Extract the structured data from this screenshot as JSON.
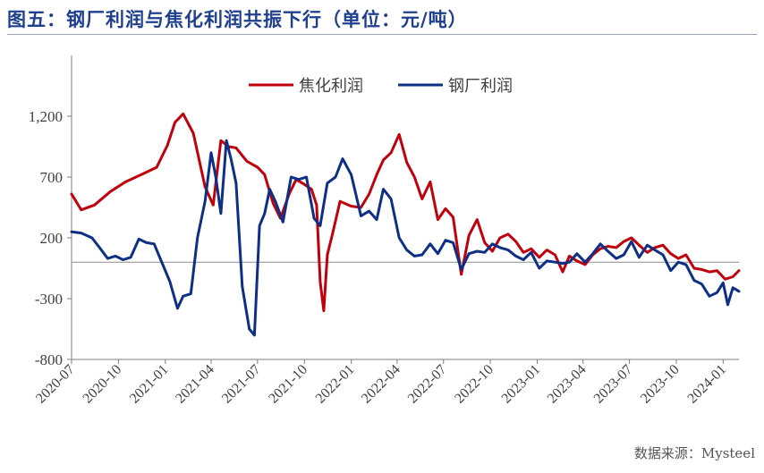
{
  "title": "图五：钢厂利润与焦化利润共振下行（单位：元/吨）",
  "source": "数据来源：Mysteel",
  "colors": {
    "coke": "#c0000b",
    "steel": "#0e2f86",
    "title": "#1f3f8f"
  },
  "chart_data": {
    "type": "line",
    "title": "图五：钢厂利润与焦化利润共振下行（单位：元/吨）",
    "xlabel": "",
    "ylabel": "",
    "ylim": [
      -800,
      1700
    ],
    "yticks": [
      -800,
      -300,
      200,
      700,
      1200
    ],
    "ytick_labels": [
      "-800",
      "-300",
      "200",
      "700",
      "1,200"
    ],
    "xlim": [
      "2020-07",
      "2024-02"
    ],
    "xticks": [
      "2020-07",
      "2020-10",
      "2021-01",
      "2021-04",
      "2021-07",
      "2021-10",
      "2022-01",
      "2022-04",
      "2022-07",
      "2022-10",
      "2023-01",
      "2023-04",
      "2023-07",
      "2023-10",
      "2024-01"
    ],
    "grid": false,
    "legend": "top-center",
    "series": [
      {
        "name": "焦化利润",
        "color": "#c0000b",
        "x": [
          "2020-07-01",
          "2020-07-20",
          "2020-08-15",
          "2020-09-15",
          "2020-10-15",
          "2020-11-15",
          "2020-12-15",
          "2021-01-05",
          "2021-01-20",
          "2021-02-05",
          "2021-02-25",
          "2021-03-20",
          "2021-04-05",
          "2021-04-20",
          "2021-05-05",
          "2021-05-20",
          "2021-06-10",
          "2021-07-01",
          "2021-07-15",
          "2021-08-01",
          "2021-08-15",
          "2021-09-01",
          "2021-09-15",
          "2021-10-01",
          "2021-10-15",
          "2021-10-25",
          "2021-11-01",
          "2021-11-08",
          "2021-11-15",
          "2021-11-25",
          "2021-12-10",
          "2022-01-01",
          "2022-01-20",
          "2022-02-05",
          "2022-02-20",
          "2022-03-05",
          "2022-03-20",
          "2022-04-05",
          "2022-04-20",
          "2022-05-05",
          "2022-05-20",
          "2022-06-05",
          "2022-06-20",
          "2022-07-05",
          "2022-07-20",
          "2022-08-05",
          "2022-08-20",
          "2022-09-05",
          "2022-09-20",
          "2022-10-05",
          "2022-10-20",
          "2022-11-05",
          "2022-11-20",
          "2022-12-05",
          "2022-12-20",
          "2023-01-05",
          "2023-01-20",
          "2023-02-05",
          "2023-02-20",
          "2023-03-05",
          "2023-03-20",
          "2023-04-05",
          "2023-04-20",
          "2023-05-05",
          "2023-05-20",
          "2023-06-05",
          "2023-06-20",
          "2023-07-05",
          "2023-07-20",
          "2023-08-05",
          "2023-08-20",
          "2023-09-05",
          "2023-09-20",
          "2023-10-05",
          "2023-10-20",
          "2023-11-05",
          "2023-11-20",
          "2023-12-05",
          "2023-12-20",
          "2024-01-05",
          "2024-01-20",
          "2024-02-01"
        ],
        "values": [
          560,
          430,
          470,
          580,
          660,
          720,
          780,
          960,
          1150,
          1220,
          1060,
          620,
          470,
          1000,
          950,
          940,
          830,
          780,
          720,
          480,
          360,
          560,
          680,
          640,
          600,
          470,
          -160,
          -400,
          60,
          230,
          500,
          460,
          450,
          560,
          720,
          840,
          900,
          1050,
          820,
          700,
          520,
          660,
          350,
          440,
          370,
          -100,
          220,
          350,
          160,
          90,
          200,
          230,
          170,
          80,
          110,
          40,
          100,
          60,
          -80,
          50,
          10,
          -20,
          60,
          110,
          130,
          120,
          170,
          200,
          140,
          80,
          120,
          140,
          70,
          30,
          60,
          -50,
          -60,
          -80,
          -70,
          -140,
          -120,
          -70
        ]
      },
      {
        "name": "钢厂利润",
        "color": "#0e2f86",
        "x": [
          "2020-07-01",
          "2020-07-20",
          "2020-08-10",
          "2020-08-25",
          "2020-09-10",
          "2020-09-25",
          "2020-10-10",
          "2020-10-25",
          "2020-11-10",
          "2020-11-25",
          "2020-12-10",
          "2020-12-25",
          "2021-01-10",
          "2021-01-25",
          "2021-02-05",
          "2021-02-20",
          "2021-03-05",
          "2021-03-20",
          "2021-04-01",
          "2021-04-10",
          "2021-04-20",
          "2021-05-01",
          "2021-05-10",
          "2021-05-20",
          "2021-06-01",
          "2021-06-15",
          "2021-06-25",
          "2021-07-05",
          "2021-07-15",
          "2021-07-25",
          "2021-08-05",
          "2021-08-20",
          "2021-09-05",
          "2021-09-20",
          "2021-10-05",
          "2021-10-20",
          "2021-11-01",
          "2021-11-15",
          "2021-12-01",
          "2021-12-15",
          "2022-01-01",
          "2022-01-20",
          "2022-02-05",
          "2022-02-20",
          "2022-03-05",
          "2022-03-20",
          "2022-04-05",
          "2022-04-20",
          "2022-05-05",
          "2022-05-20",
          "2022-06-05",
          "2022-06-20",
          "2022-07-05",
          "2022-07-20",
          "2022-08-05",
          "2022-08-20",
          "2022-09-05",
          "2022-09-20",
          "2022-10-05",
          "2022-10-20",
          "2022-11-05",
          "2022-11-20",
          "2022-12-05",
          "2022-12-20",
          "2023-01-05",
          "2023-01-20",
          "2023-02-05",
          "2023-02-20",
          "2023-03-05",
          "2023-03-20",
          "2023-04-05",
          "2023-04-20",
          "2023-05-05",
          "2023-05-20",
          "2023-06-05",
          "2023-06-20",
          "2023-07-05",
          "2023-07-20",
          "2023-08-05",
          "2023-08-20",
          "2023-09-05",
          "2023-09-20",
          "2023-10-05",
          "2023-10-20",
          "2023-11-05",
          "2023-11-20",
          "2023-12-05",
          "2023-12-20",
          "2024-01-01",
          "2024-01-10",
          "2024-01-20",
          "2024-02-01"
        ],
        "values": [
          250,
          240,
          200,
          120,
          30,
          50,
          20,
          40,
          190,
          160,
          150,
          0,
          -160,
          -380,
          -280,
          -260,
          200,
          500,
          900,
          700,
          400,
          1000,
          850,
          650,
          -200,
          -550,
          -600,
          300,
          400,
          600,
          500,
          330,
          700,
          680,
          700,
          360,
          300,
          650,
          700,
          850,
          720,
          380,
          420,
          350,
          600,
          520,
          200,
          100,
          50,
          60,
          150,
          70,
          180,
          160,
          -60,
          70,
          90,
          80,
          150,
          120,
          100,
          50,
          20,
          80,
          -50,
          10,
          0,
          -10,
          0,
          70,
          0,
          70,
          150,
          90,
          30,
          60,
          170,
          40,
          140,
          100,
          60,
          -70,
          0,
          -20,
          -150,
          -180,
          -280,
          -250,
          -170,
          -350,
          -210,
          -240
        ]
      }
    ]
  }
}
